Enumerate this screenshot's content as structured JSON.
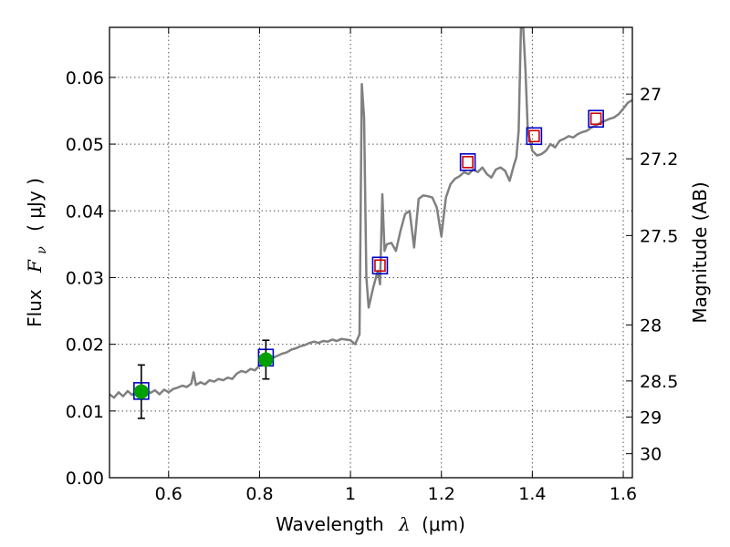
{
  "chart_data": {
    "type": "line",
    "xlabel_main": "Wavelength",
    "xlabel_symbol": "λ",
    "xlabel_unit": "(μm)",
    "ylabel_main": "Flux",
    "ylabel_symbol": "F",
    "ylabel_subscript": "ν",
    "ylabel_unit": "( μJy )",
    "y2label": "Magnitude (AB)",
    "xlim": [
      0.47,
      1.62
    ],
    "ylim": [
      0.0,
      0.0675
    ],
    "grid": true,
    "xticks": [
      0.6,
      0.8,
      1.0,
      1.2,
      1.4,
      1.6
    ],
    "xtick_labels": [
      "0.6",
      "0.8",
      "1",
      "1.2",
      "1.4",
      "1.6"
    ],
    "yticks": [
      0.0,
      0.01,
      0.02,
      0.03,
      0.04,
      0.05,
      0.06
    ],
    "ytick_labels": [
      "0.00",
      "0.01",
      "0.02",
      "0.03",
      "0.04",
      "0.05",
      "0.06"
    ],
    "y2ticks": [
      {
        "label": "27",
        "flux": 0.0575
      },
      {
        "label": "27.2",
        "flux": 0.0478
      },
      {
        "label": "27.5",
        "flux": 0.0363
      },
      {
        "label": "28",
        "flux": 0.0229
      },
      {
        "label": "28.5",
        "flux": 0.0145
      },
      {
        "label": "29",
        "flux": 0.0091
      },
      {
        "label": "30",
        "flux": 0.0036
      }
    ],
    "colors": {
      "spectrum": "#808080",
      "observed_point": "#00a000",
      "model_box": "#0000cc",
      "model_inner_box": "#cc0000",
      "grid": "#555555"
    },
    "spectrum": [
      [
        0.47,
        0.0125
      ],
      [
        0.48,
        0.012
      ],
      [
        0.49,
        0.0128
      ],
      [
        0.5,
        0.0122
      ],
      [
        0.51,
        0.013
      ],
      [
        0.52,
        0.0124
      ],
      [
        0.53,
        0.0132
      ],
      [
        0.54,
        0.0126
      ],
      [
        0.55,
        0.0133
      ],
      [
        0.56,
        0.0127
      ],
      [
        0.57,
        0.0131
      ],
      [
        0.58,
        0.0125
      ],
      [
        0.59,
        0.0132
      ],
      [
        0.6,
        0.0128
      ],
      [
        0.61,
        0.0133
      ],
      [
        0.62,
        0.0135
      ],
      [
        0.63,
        0.0138
      ],
      [
        0.64,
        0.0136
      ],
      [
        0.65,
        0.0141
      ],
      [
        0.655,
        0.0158
      ],
      [
        0.66,
        0.0139
      ],
      [
        0.67,
        0.0143
      ],
      [
        0.68,
        0.014
      ],
      [
        0.69,
        0.0146
      ],
      [
        0.7,
        0.0144
      ],
      [
        0.71,
        0.0148
      ],
      [
        0.72,
        0.0146
      ],
      [
        0.73,
        0.015
      ],
      [
        0.74,
        0.0148
      ],
      [
        0.75,
        0.0156
      ],
      [
        0.76,
        0.016
      ],
      [
        0.77,
        0.0158
      ],
      [
        0.78,
        0.0163
      ],
      [
        0.79,
        0.0161
      ],
      [
        0.8,
        0.0168
      ],
      [
        0.81,
        0.0175
      ],
      [
        0.82,
        0.0178
      ],
      [
        0.83,
        0.018
      ],
      [
        0.84,
        0.0183
      ],
      [
        0.85,
        0.0186
      ],
      [
        0.86,
        0.0188
      ],
      [
        0.87,
        0.0192
      ],
      [
        0.88,
        0.0194
      ],
      [
        0.89,
        0.0197
      ],
      [
        0.9,
        0.0199
      ],
      [
        0.91,
        0.0202
      ],
      [
        0.92,
        0.0204
      ],
      [
        0.93,
        0.0202
      ],
      [
        0.94,
        0.0205
      ],
      [
        0.95,
        0.0204
      ],
      [
        0.96,
        0.0207
      ],
      [
        0.97,
        0.0205
      ],
      [
        0.98,
        0.0208
      ],
      [
        0.99,
        0.0207
      ],
      [
        1.0,
        0.0206
      ],
      [
        1.01,
        0.02
      ],
      [
        1.02,
        0.0215
      ],
      [
        1.025,
        0.059
      ],
      [
        1.03,
        0.054
      ],
      [
        1.035,
        0.03
      ],
      [
        1.04,
        0.0255
      ],
      [
        1.05,
        0.0285
      ],
      [
        1.06,
        0.031
      ],
      [
        1.065,
        0.029
      ],
      [
        1.07,
        0.0425
      ],
      [
        1.075,
        0.034
      ],
      [
        1.08,
        0.035
      ],
      [
        1.09,
        0.0352
      ],
      [
        1.1,
        0.034
      ],
      [
        1.11,
        0.037
      ],
      [
        1.12,
        0.0395
      ],
      [
        1.13,
        0.04
      ],
      [
        1.14,
        0.0345
      ],
      [
        1.15,
        0.0418
      ],
      [
        1.16,
        0.0423
      ],
      [
        1.17,
        0.0422
      ],
      [
        1.18,
        0.042
      ],
      [
        1.19,
        0.0405
      ],
      [
        1.2,
        0.0362
      ],
      [
        1.21,
        0.042
      ],
      [
        1.22,
        0.044
      ],
      [
        1.23,
        0.0448
      ],
      [
        1.24,
        0.0452
      ],
      [
        1.25,
        0.0458
      ],
      [
        1.26,
        0.0455
      ],
      [
        1.27,
        0.0462
      ],
      [
        1.28,
        0.0458
      ],
      [
        1.29,
        0.0465
      ],
      [
        1.3,
        0.0455
      ],
      [
        1.31,
        0.045
      ],
      [
        1.32,
        0.0462
      ],
      [
        1.33,
        0.0465
      ],
      [
        1.34,
        0.046
      ],
      [
        1.35,
        0.0445
      ],
      [
        1.36,
        0.047
      ],
      [
        1.365,
        0.048
      ],
      [
        1.37,
        0.052
      ],
      [
        1.375,
        0.0675
      ],
      [
        1.38,
        0.0675
      ],
      [
        1.385,
        0.061
      ],
      [
        1.39,
        0.052
      ],
      [
        1.4,
        0.049
      ],
      [
        1.41,
        0.0483
      ],
      [
        1.42,
        0.0485
      ],
      [
        1.43,
        0.049
      ],
      [
        1.44,
        0.05
      ],
      [
        1.45,
        0.0495
      ],
      [
        1.46,
        0.0505
      ],
      [
        1.47,
        0.0508
      ],
      [
        1.48,
        0.0512
      ],
      [
        1.49,
        0.051
      ],
      [
        1.5,
        0.0515
      ],
      [
        1.51,
        0.0518
      ],
      [
        1.52,
        0.052
      ],
      [
        1.53,
        0.0525
      ],
      [
        1.54,
        0.0528
      ],
      [
        1.55,
        0.0532
      ],
      [
        1.56,
        0.0535
      ],
      [
        1.57,
        0.0538
      ],
      [
        1.58,
        0.054
      ],
      [
        1.59,
        0.0545
      ],
      [
        1.6,
        0.0553
      ],
      [
        1.61,
        0.0562
      ],
      [
        1.62,
        0.0566
      ]
    ],
    "observed": [
      {
        "x": 0.54,
        "y": 0.0129,
        "err": 0.004
      },
      {
        "x": 0.814,
        "y": 0.0177,
        "err": 0.0029
      }
    ],
    "model": [
      {
        "x": 0.54,
        "y": 0.013,
        "inner": false
      },
      {
        "x": 0.814,
        "y": 0.018,
        "inner": false
      },
      {
        "x": 1.065,
        "y": 0.0318,
        "inner": true
      },
      {
        "x": 1.258,
        "y": 0.0473,
        "inner": true
      },
      {
        "x": 1.404,
        "y": 0.0512,
        "inner": true
      },
      {
        "x": 1.54,
        "y": 0.0538,
        "inner": true
      }
    ]
  }
}
